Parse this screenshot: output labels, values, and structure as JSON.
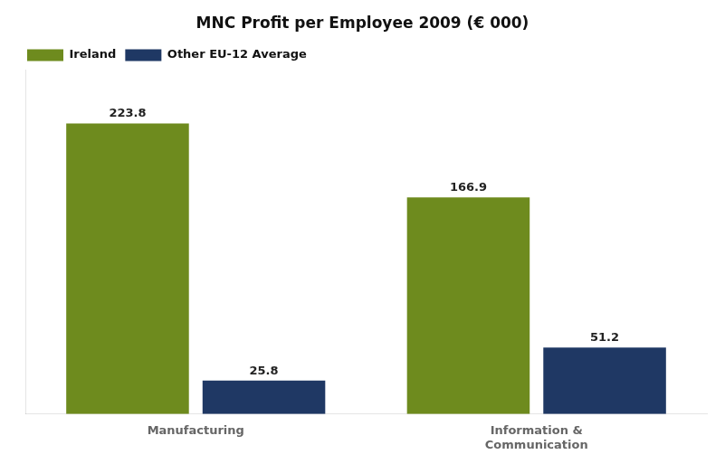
{
  "chart_data": {
    "type": "bar",
    "title": "MNC Profit per Employee 2009 (€ 000)",
    "categories": [
      "Manufacturing",
      "Information &\nCommunication"
    ],
    "series": [
      {
        "name": "Ireland",
        "color": "#6e8b1e",
        "values": [
          223.8,
          166.9
        ]
      },
      {
        "name": "Other EU-12 Average",
        "color": "#1f3864",
        "values": [
          25.8,
          51.2
        ]
      }
    ],
    "ylim": [
      0,
      265
    ],
    "grid": false,
    "legend": "upper left",
    "data_labels": true,
    "tick_labels": "x"
  }
}
